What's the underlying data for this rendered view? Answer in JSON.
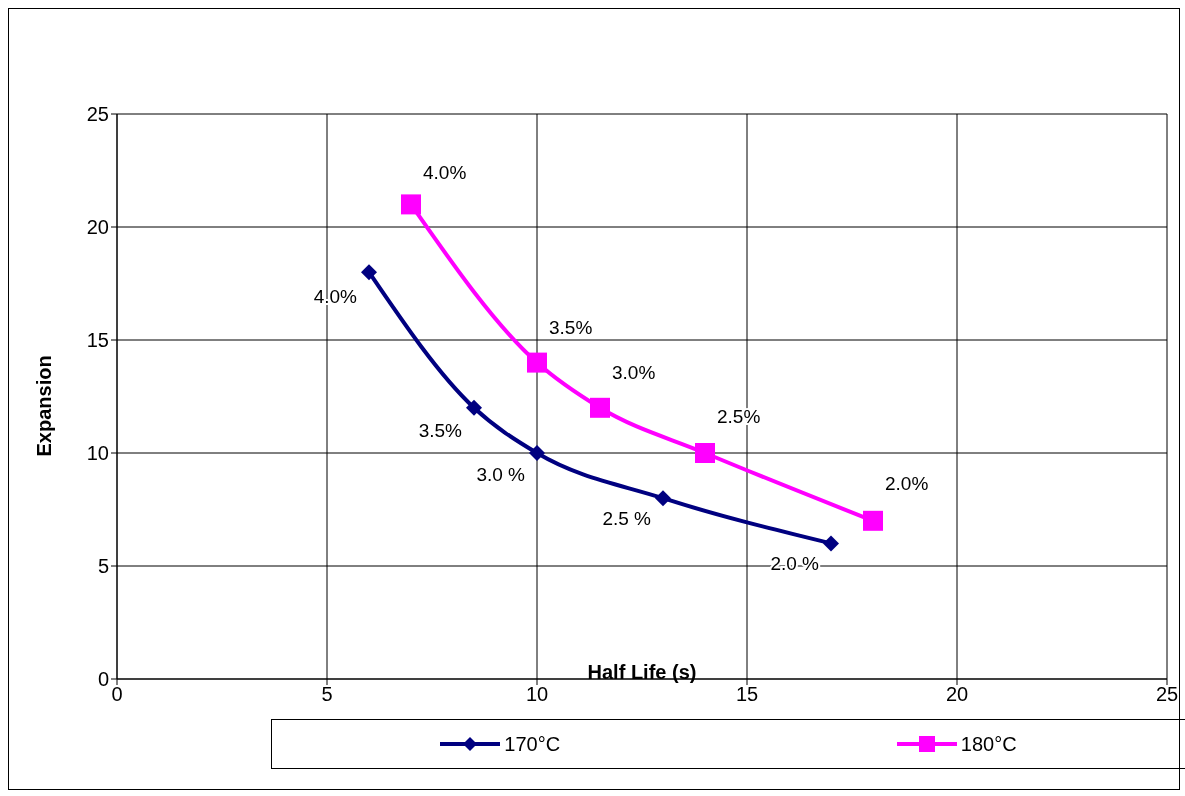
{
  "chart_data": {
    "type": "line",
    "xlabel": "Half Life (s)",
    "ylabel": "Expansion",
    "xlim": [
      0,
      25
    ],
    "xticks": [
      0,
      5,
      10,
      15,
      20,
      25
    ],
    "ylim": [
      0,
      25
    ],
    "yticks": [
      0,
      5,
      10,
      15,
      20,
      25
    ],
    "grid": true,
    "legend": "bottom",
    "line_style": "solid",
    "series": [
      {
        "name": "170°C",
        "color": "#000080",
        "marker": "diamond",
        "x": [
          6,
          8.5,
          10,
          13,
          17
        ],
        "values": [
          18,
          12,
          10,
          8,
          6
        ]
      },
      {
        "name": "180°C",
        "color": "#ff00ff",
        "marker": "square",
        "x": [
          7,
          10,
          11.5,
          14,
          18
        ],
        "values": [
          21,
          14,
          12,
          10,
          7
        ]
      }
    ],
    "annotations": [
      {
        "text": "4.0%",
        "x": 6,
        "y": 18
      },
      {
        "text": "3.5%",
        "x": 8.5,
        "y": 12
      },
      {
        "text": "3.0 %",
        "x": 10,
        "y": 10
      },
      {
        "text": "2.5 %",
        "x": 13,
        "y": 8
      },
      {
        "text": "2.0 %",
        "x": 17,
        "y": 6
      },
      {
        "text": "4.0%",
        "x": 7,
        "y": 21
      },
      {
        "text": "3.5%",
        "x": 10,
        "y": 14
      },
      {
        "text": "3.0%",
        "x": 11.5,
        "y": 12
      },
      {
        "text": "2.5%",
        "x": 14,
        "y": 10
      },
      {
        "text": "2.0%",
        "x": 18,
        "y": 7
      }
    ]
  }
}
